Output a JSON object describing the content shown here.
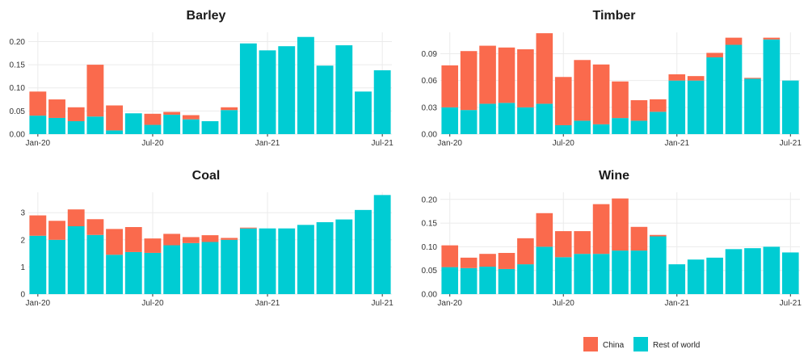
{
  "legend": {
    "position": "bottom-right",
    "items": [
      {
        "label": "China",
        "color": "#FA6A4D"
      },
      {
        "label": "Rest of world",
        "color": "#00CCD3"
      }
    ]
  },
  "chart_data": [
    {
      "type": "bar",
      "stacked": true,
      "title": "Barley",
      "x_ticks": [
        "Jan-20",
        "Jul-20",
        "Jan-21",
        "Jul-21"
      ],
      "categories": [
        "2020-01",
        "2020-02",
        "2020-03",
        "2020-04",
        "2020-05",
        "2020-06",
        "2020-07",
        "2020-08",
        "2020-09",
        "2020-10",
        "2020-11",
        "2020-12",
        "2021-01",
        "2021-02",
        "2021-03",
        "2021-04",
        "2021-05",
        "2021-06",
        "2021-07"
      ],
      "y_ticks": [
        "0.00",
        "0.05",
        "0.10",
        "0.15",
        "0.20"
      ],
      "ylim": [
        0,
        0.22
      ],
      "grid": true,
      "series": [
        {
          "name": "Rest of world",
          "color": "#00CCD3",
          "values": [
            0.04,
            0.035,
            0.028,
            0.038,
            0.008,
            0.045,
            0.02,
            0.042,
            0.032,
            0.028,
            0.052,
            0.196,
            0.181,
            0.19,
            0.21,
            0.148,
            0.192,
            0.092,
            0.138
          ]
        },
        {
          "name": "China",
          "color": "#FA6A4D",
          "values": [
            0.052,
            0.04,
            0.03,
            0.112,
            0.054,
            0,
            0.024,
            0.006,
            0.009,
            0,
            0.006,
            0,
            0,
            0,
            0,
            0,
            0,
            0,
            0
          ]
        }
      ]
    },
    {
      "type": "bar",
      "stacked": true,
      "title": "Timber",
      "x_ticks": [
        "Jan-20",
        "Jul-20",
        "Jan-21",
        "Jul-21"
      ],
      "categories": [
        "2020-01",
        "2020-02",
        "2020-03",
        "2020-04",
        "2020-05",
        "2020-06",
        "2020-07",
        "2020-08",
        "2020-09",
        "2020-10",
        "2020-11",
        "2020-12",
        "2021-01",
        "2021-02",
        "2021-03",
        "2021-04",
        "2021-05",
        "2021-06",
        "2021-07"
      ],
      "y_ticks": [
        "0.00",
        "0.03",
        "0.06",
        "0.09"
      ],
      "ylim": [
        0,
        0.114
      ],
      "grid": true,
      "series": [
        {
          "name": "Rest of world",
          "color": "#00CCD3",
          "values": [
            0.03,
            0.027,
            0.034,
            0.035,
            0.03,
            0.034,
            0.01,
            0.015,
            0.011,
            0.018,
            0.015,
            0.025,
            0.06,
            0.06,
            0.086,
            0.1,
            0.062,
            0.106,
            0.06
          ]
        },
        {
          "name": "China",
          "color": "#FA6A4D",
          "values": [
            0.047,
            0.066,
            0.065,
            0.062,
            0.065,
            0.079,
            0.054,
            0.068,
            0.067,
            0.041,
            0.023,
            0.014,
            0.007,
            0.005,
            0.005,
            0.008,
            0.001,
            0.002,
            0
          ]
        }
      ]
    },
    {
      "type": "bar",
      "stacked": true,
      "title": "Coal",
      "x_ticks": [
        "Jan-20",
        "Jul-20",
        "Jan-21",
        "Jul-21"
      ],
      "categories": [
        "2020-01",
        "2020-02",
        "2020-03",
        "2020-04",
        "2020-05",
        "2020-06",
        "2020-07",
        "2020-08",
        "2020-09",
        "2020-10",
        "2020-11",
        "2020-12",
        "2021-01",
        "2021-02",
        "2021-03",
        "2021-04",
        "2021-05",
        "2021-06",
        "2021-07"
      ],
      "y_ticks": [
        "0",
        "1",
        "2",
        "3"
      ],
      "ylim": [
        0,
        3.75
      ],
      "grid": true,
      "series": [
        {
          "name": "Rest of world",
          "color": "#00CCD3",
          "values": [
            2.15,
            2.0,
            2.5,
            2.18,
            1.45,
            1.55,
            1.52,
            1.8,
            1.88,
            1.92,
            2.0,
            2.42,
            2.42,
            2.42,
            2.55,
            2.65,
            2.75,
            3.1,
            3.65
          ]
        },
        {
          "name": "China",
          "color": "#FA6A4D",
          "values": [
            0.75,
            0.7,
            0.62,
            0.58,
            0.95,
            0.92,
            0.53,
            0.42,
            0.22,
            0.25,
            0.07,
            0.03,
            0,
            0,
            0,
            0,
            0,
            0,
            0
          ]
        }
      ]
    },
    {
      "type": "bar",
      "stacked": true,
      "title": "Wine",
      "x_ticks": [
        "Jan-20",
        "Jul-20",
        "Jan-21",
        "Jul-21"
      ],
      "categories": [
        "2020-01",
        "2020-02",
        "2020-03",
        "2020-04",
        "2020-05",
        "2020-06",
        "2020-07",
        "2020-08",
        "2020-09",
        "2020-10",
        "2020-11",
        "2020-12",
        "2021-01",
        "2021-02",
        "2021-03",
        "2021-04",
        "2021-05",
        "2021-06",
        "2021-07"
      ],
      "y_ticks": [
        "0.00",
        "0.05",
        "0.10",
        "0.15",
        "0.20"
      ],
      "ylim": [
        0,
        0.215
      ],
      "grid": true,
      "series": [
        {
          "name": "Rest of world",
          "color": "#00CCD3",
          "values": [
            0.057,
            0.055,
            0.058,
            0.053,
            0.063,
            0.1,
            0.078,
            0.085,
            0.085,
            0.092,
            0.092,
            0.122,
            0.063,
            0.073,
            0.077,
            0.095,
            0.097,
            0.1,
            0.088
          ]
        },
        {
          "name": "China",
          "color": "#FA6A4D",
          "values": [
            0.046,
            0.022,
            0.027,
            0.034,
            0.055,
            0.071,
            0.055,
            0.048,
            0.105,
            0.11,
            0.05,
            0.003,
            0,
            0,
            0,
            0,
            0,
            0,
            0
          ]
        }
      ]
    }
  ]
}
